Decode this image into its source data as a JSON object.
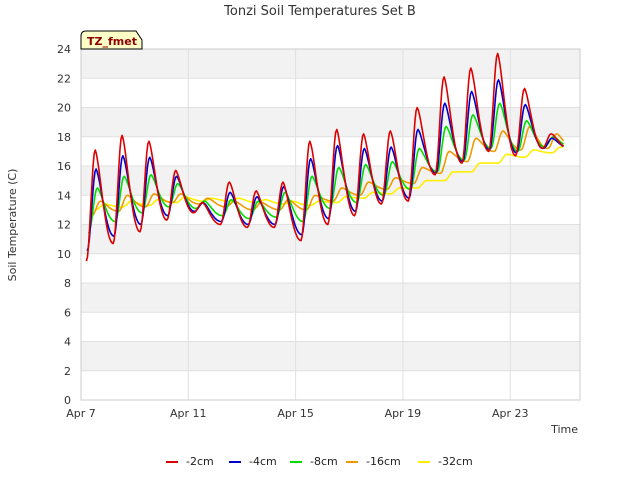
{
  "chart_data": {
    "type": "line",
    "title": "Tonzi Soil Temperatures Set B",
    "xlabel": "Time",
    "ylabel": "Soil Temperature (C)",
    "badge": "TZ_fmet",
    "xlim": [
      7,
      25.6
    ],
    "ylim": [
      0,
      24
    ],
    "x_tick_values": [
      7,
      11,
      15,
      19,
      23
    ],
    "x_tick_labels": [
      "Apr 7",
      "Apr 11",
      "Apr 15",
      "Apr 19",
      "Apr 23"
    ],
    "y_ticks": [
      0,
      2,
      4,
      6,
      8,
      10,
      12,
      14,
      16,
      18,
      20,
      22,
      24
    ],
    "grid": true,
    "legend_position": "bottom",
    "series": [
      {
        "name": "-2cm",
        "color": "#dd0000",
        "daily_min": [
          9.5,
          10.7,
          11.5,
          12.3,
          12.8,
          12.0,
          11.8,
          11.8,
          10.9,
          12.0,
          12.6,
          13.4,
          13.6,
          15.4,
          16.2,
          17.0,
          16.7,
          17.2
        ],
        "daily_max": [
          17.1,
          18.1,
          17.7,
          15.7,
          13.5,
          14.9,
          14.3,
          14.9,
          17.7,
          18.5,
          18.2,
          18.4,
          20.0,
          22.1,
          22.7,
          23.7,
          21.3,
          18.2
        ]
      },
      {
        "name": "-4cm",
        "color": "#0000cc",
        "daily_min": [
          10.2,
          11.2,
          12.0,
          12.6,
          12.9,
          12.2,
          12.0,
          12.0,
          11.3,
          12.4,
          12.9,
          13.6,
          13.8,
          15.5,
          16.3,
          17.1,
          16.9,
          17.2
        ],
        "daily_max": [
          15.8,
          16.7,
          16.6,
          15.3,
          13.5,
          14.2,
          13.9,
          14.6,
          16.5,
          17.4,
          17.2,
          17.3,
          18.5,
          20.3,
          21.1,
          21.9,
          20.2,
          17.9
        ]
      },
      {
        "name": "-8cm",
        "color": "#00dd00",
        "daily_min": [
          11.4,
          12.2,
          12.8,
          13.2,
          13.1,
          12.6,
          12.4,
          12.5,
          12.2,
          13.1,
          13.5,
          14.0,
          14.4,
          15.6,
          16.4,
          17.2,
          17.0,
          17.3
        ],
        "daily_max": [
          14.5,
          15.3,
          15.4,
          14.8,
          13.6,
          13.7,
          13.6,
          14.2,
          15.3,
          15.9,
          16.1,
          16.3,
          17.2,
          18.7,
          19.5,
          20.3,
          19.1,
          18.0
        ]
      },
      {
        "name": "-16cm",
        "color": "#ee9900",
        "daily_min": [
          12.6,
          12.9,
          13.2,
          13.5,
          13.4,
          13.2,
          13.0,
          13.0,
          13.0,
          13.6,
          14.0,
          14.4,
          14.8,
          15.5,
          16.3,
          17.0,
          17.1,
          17.2
        ],
        "daily_max": [
          13.6,
          14.0,
          14.1,
          14.1,
          13.8,
          13.6,
          13.5,
          13.7,
          14.0,
          14.5,
          14.9,
          15.2,
          15.9,
          17.0,
          17.9,
          18.4,
          18.7,
          18.2
        ]
      },
      {
        "name": "-32cm",
        "color": "#ffee00",
        "daily_min": [
          13.0,
          13.2,
          13.3,
          13.5,
          13.6,
          13.6,
          13.5,
          13.4,
          13.3,
          13.5,
          13.8,
          14.1,
          14.5,
          15.0,
          15.6,
          16.2,
          16.6,
          16.9
        ],
        "daily_max": [
          13.4,
          13.6,
          13.7,
          13.9,
          13.8,
          13.8,
          13.7,
          13.6,
          13.6,
          13.9,
          14.2,
          14.5,
          15.0,
          15.6,
          16.2,
          16.8,
          17.1,
          17.3
        ]
      }
    ]
  }
}
